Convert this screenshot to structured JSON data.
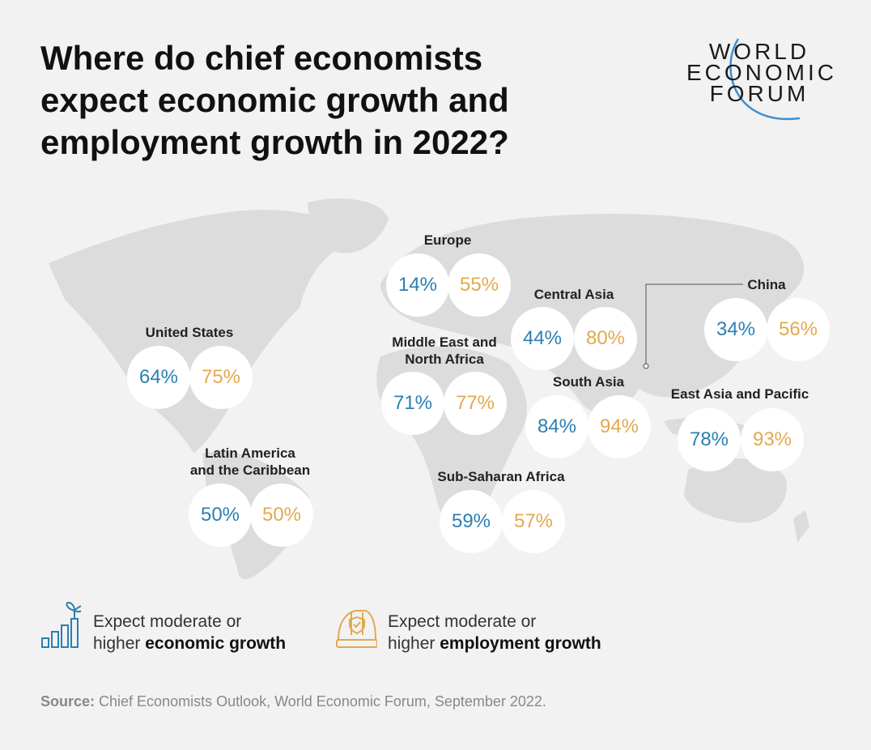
{
  "title_lines": [
    "Where do chief economists",
    "expect economic growth and",
    "employment growth in 2022?"
  ],
  "logo": {
    "lines": [
      "WORLD",
      "ECONOMIC",
      "FORUM"
    ]
  },
  "colors": {
    "economic": "#2a7fb2",
    "employment": "#e3a94f",
    "background": "#f2f2f2",
    "map": "#dcdcdc"
  },
  "regions": [
    {
      "name_lines": [
        "United States"
      ],
      "economic": "64%",
      "employment": "75%"
    },
    {
      "name_lines": [
        "Latin America",
        "and the Caribbean"
      ],
      "economic": "50%",
      "employment": "50%"
    },
    {
      "name_lines": [
        "Europe"
      ],
      "economic": "14%",
      "employment": "55%"
    },
    {
      "name_lines": [
        "Central Asia"
      ],
      "economic": "44%",
      "employment": "80%"
    },
    {
      "name_lines": [
        "Middle East and",
        "North Africa"
      ],
      "economic": "71%",
      "employment": "77%"
    },
    {
      "name_lines": [
        "South Asia"
      ],
      "economic": "84%",
      "employment": "94%"
    },
    {
      "name_lines": [
        "Sub-Saharan Africa"
      ],
      "economic": "59%",
      "employment": "57%"
    },
    {
      "name_lines": [
        "China"
      ],
      "economic": "34%",
      "employment": "56%"
    },
    {
      "name_lines": [
        "East Asia and Pacific"
      ],
      "economic": "78%",
      "employment": "93%"
    }
  ],
  "legend": {
    "economic": {
      "icon": "growth-bar-chart-plant-icon",
      "line1": "Expect moderate or",
      "line2_prefix": "higher ",
      "line2_bold": "economic growth"
    },
    "employment": {
      "icon": "hard-hat-shield-icon",
      "line1": "Expect moderate or",
      "line2_prefix": "higher ",
      "line2_bold": "employment growth"
    }
  },
  "source": {
    "label": "Source:",
    "text": " Chief Economists Outlook, World Economic Forum, September 2022."
  }
}
